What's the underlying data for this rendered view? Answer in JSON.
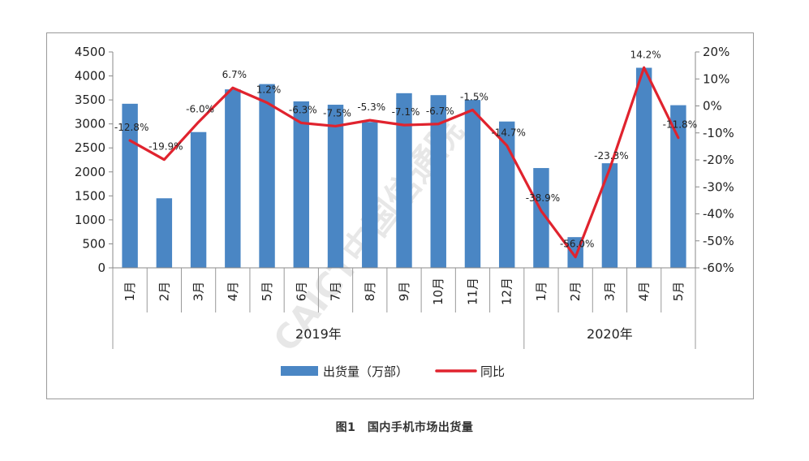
{
  "figure_caption": "图1　国内手机市场出货量",
  "watermark": "CAICT中国信通院",
  "chart_data": {
    "type": "bar+line",
    "categories": [
      "1月",
      "2月",
      "3月",
      "4月",
      "5月",
      "6月",
      "7月",
      "8月",
      "9月",
      "10月",
      "11月",
      "12月",
      "1月",
      "2月",
      "3月",
      "4月",
      "5月"
    ],
    "year_groups": [
      {
        "label": "2019年",
        "count": 12
      },
      {
        "label": "2020年",
        "count": 5
      }
    ],
    "series": [
      {
        "name": "出货量（万部）",
        "type": "bar",
        "axis": "left",
        "color": "#4a86c4",
        "values": [
          3420,
          1450,
          2830,
          3720,
          3830,
          3470,
          3400,
          3040,
          3640,
          3600,
          3500,
          3050,
          2080,
          640,
          2180,
          4170,
          3390
        ]
      },
      {
        "name": "同比",
        "type": "line",
        "axis": "right",
        "color": "#e0232e",
        "values": [
          -12.8,
          -19.9,
          -6.0,
          6.7,
          1.2,
          -6.3,
          -7.5,
          -5.3,
          -7.1,
          -6.7,
          -1.5,
          -14.7,
          -38.9,
          -56.0,
          -23.3,
          14.2,
          -11.8
        ],
        "labels": [
          "-12.8%",
          "-19.9%",
          "-6.0%",
          "6.7%",
          "1.2%",
          "-6.3%",
          "-7.5%",
          "-5.3%",
          "-7.1%",
          "-6.7%",
          "-1.5%",
          "-14.7%",
          "-38.9%",
          "-56.0%",
          "-23.3%",
          "14.2%",
          "-11.8%"
        ]
      }
    ],
    "left_axis": {
      "ylim": [
        0,
        4500
      ],
      "ticks": [
        "0",
        "500",
        "1000",
        "1500",
        "2000",
        "2500",
        "3000",
        "3500",
        "4000",
        "4500"
      ]
    },
    "right_axis": {
      "ylim": [
        -60,
        20
      ],
      "ticks": [
        "-60%",
        "-50%",
        "-40%",
        "-30%",
        "-20%",
        "-10%",
        "0%",
        "10%",
        "20%"
      ]
    },
    "legend": {
      "position": "bottom",
      "items": [
        {
          "label": "出货量（万部）",
          "kind": "bar",
          "color": "#4a86c4"
        },
        {
          "label": "同比",
          "kind": "line",
          "color": "#e0232e"
        }
      ]
    },
    "grid": false
  }
}
